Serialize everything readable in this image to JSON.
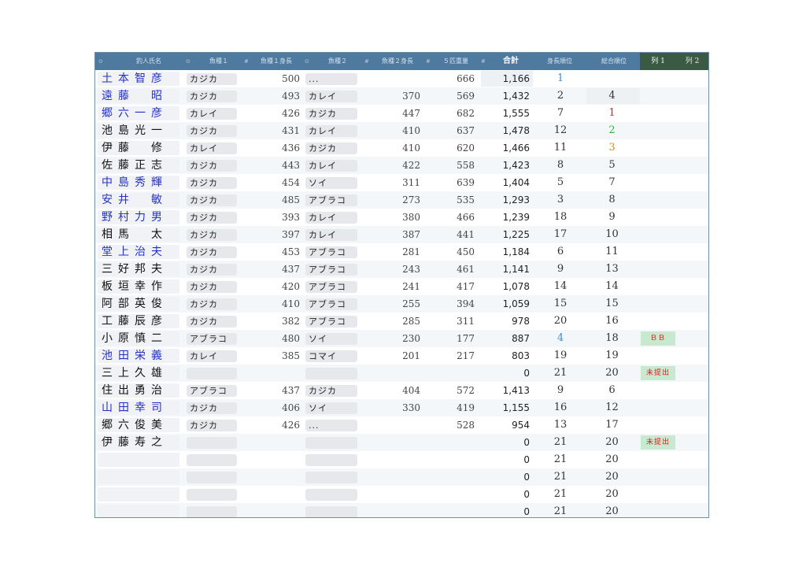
{
  "colors": {
    "header_bg": "#4e7aa0",
    "selected_header_bg": "#3a5a44",
    "name_blue": "#2432c8",
    "badge_bg": "#c9e8d0",
    "badge_text": "#cc2222",
    "rank_blue": "#3a8fd0",
    "rank_red": "#d02020",
    "rank_green": "#2fb82f",
    "rank_orange": "#e08a10"
  },
  "header": {
    "col_name": "釣人氏名",
    "col_fish1": "魚種１",
    "col_len1": "魚種１身長",
    "col_fish2": "魚種２",
    "col_len2": "魚種２身長",
    "col_top5": "５匹重量",
    "col_total": "合計",
    "col_len_rank": "身長順位",
    "col_total_rank": "総合順位",
    "col_extra1": "列 1",
    "col_extra2": "列 2"
  },
  "rows": [
    {
      "name": "土本智彦",
      "blue": true,
      "fish1": "カジカ",
      "len1": "500",
      "fish2": "...",
      "len2": "",
      "top5": "666",
      "total": "1,166",
      "len_rank": "1",
      "len_rank_color": "blue",
      "total_rank": "",
      "total_rank_color": "",
      "col1": ""
    },
    {
      "name": "遠藤　昭",
      "blue": true,
      "fish1": "カジカ",
      "len1": "493",
      "fish2": "カレイ",
      "len2": "370",
      "top5": "569",
      "total": "1,432",
      "len_rank": "2",
      "len_rank_color": "",
      "total_rank": "4",
      "total_rank_color": "",
      "col1": ""
    },
    {
      "name": "郷六一彦",
      "blue": true,
      "fish1": "カレイ",
      "len1": "426",
      "fish2": "カジカ",
      "len2": "447",
      "top5": "682",
      "total": "1,555",
      "len_rank": "7",
      "len_rank_color": "",
      "total_rank": "1",
      "total_rank_color": "red",
      "col1": ""
    },
    {
      "name": "池島光一",
      "blue": false,
      "fish1": "カジカ",
      "len1": "431",
      "fish2": "カレイ",
      "len2": "410",
      "top5": "637",
      "total": "1,478",
      "len_rank": "12",
      "len_rank_color": "",
      "total_rank": "2",
      "total_rank_color": "green",
      "col1": ""
    },
    {
      "name": "伊藤　修",
      "blue": false,
      "fish1": "カレイ",
      "len1": "436",
      "fish2": "カジカ",
      "len2": "410",
      "top5": "620",
      "total": "1,466",
      "len_rank": "11",
      "len_rank_color": "",
      "total_rank": "3",
      "total_rank_color": "orange",
      "col1": ""
    },
    {
      "name": "佐藤正志",
      "blue": false,
      "fish1": "カジカ",
      "len1": "443",
      "fish2": "カレイ",
      "len2": "422",
      "top5": "558",
      "total": "1,423",
      "len_rank": "8",
      "len_rank_color": "",
      "total_rank": "5",
      "total_rank_color": "",
      "col1": ""
    },
    {
      "name": "中島秀輝",
      "blue": true,
      "fish1": "カジカ",
      "len1": "454",
      "fish2": "ソイ",
      "len2": "311",
      "top5": "639",
      "total": "1,404",
      "len_rank": "5",
      "len_rank_color": "",
      "total_rank": "7",
      "total_rank_color": "",
      "col1": ""
    },
    {
      "name": "安井　敏",
      "blue": true,
      "fish1": "カジカ",
      "len1": "485",
      "fish2": "アブラコ",
      "len2": "273",
      "top5": "535",
      "total": "1,293",
      "len_rank": "3",
      "len_rank_color": "",
      "total_rank": "8",
      "total_rank_color": "",
      "col1": ""
    },
    {
      "name": "野村力男",
      "blue": true,
      "fish1": "カジカ",
      "len1": "393",
      "fish2": "カレイ",
      "len2": "380",
      "top5": "466",
      "total": "1,239",
      "len_rank": "18",
      "len_rank_color": "",
      "total_rank": "9",
      "total_rank_color": "",
      "col1": ""
    },
    {
      "name": "相馬　太",
      "blue": false,
      "fish1": "カジカ",
      "len1": "397",
      "fish2": "カレイ",
      "len2": "387",
      "top5": "441",
      "total": "1,225",
      "len_rank": "17",
      "len_rank_color": "",
      "total_rank": "10",
      "total_rank_color": "",
      "col1": ""
    },
    {
      "name": "堂上治夫",
      "blue": true,
      "fish1": "カジカ",
      "len1": "453",
      "fish2": "アブラコ",
      "len2": "281",
      "top5": "450",
      "total": "1,184",
      "len_rank": "6",
      "len_rank_color": "",
      "total_rank": "11",
      "total_rank_color": "",
      "col1": ""
    },
    {
      "name": "三好邦夫",
      "blue": false,
      "fish1": "カジカ",
      "len1": "437",
      "fish2": "アブラコ",
      "len2": "243",
      "top5": "461",
      "total": "1,141",
      "len_rank": "9",
      "len_rank_color": "",
      "total_rank": "13",
      "total_rank_color": "",
      "col1": ""
    },
    {
      "name": "板垣幸作",
      "blue": false,
      "fish1": "カジカ",
      "len1": "420",
      "fish2": "アブラコ",
      "len2": "241",
      "top5": "417",
      "total": "1,078",
      "len_rank": "14",
      "len_rank_color": "",
      "total_rank": "14",
      "total_rank_color": "",
      "col1": ""
    },
    {
      "name": "阿部英俊",
      "blue": false,
      "fish1": "カジカ",
      "len1": "410",
      "fish2": "アブラコ",
      "len2": "255",
      "top5": "394",
      "total": "1,059",
      "len_rank": "15",
      "len_rank_color": "",
      "total_rank": "15",
      "total_rank_color": "",
      "col1": ""
    },
    {
      "name": "工藤辰彦",
      "blue": false,
      "fish1": "カジカ",
      "len1": "382",
      "fish2": "アブラコ",
      "len2": "285",
      "top5": "311",
      "total": "978",
      "len_rank": "20",
      "len_rank_color": "",
      "total_rank": "16",
      "total_rank_color": "",
      "col1": ""
    },
    {
      "name": "小原慎二",
      "blue": false,
      "fish1": "アブラコ",
      "len1": "480",
      "fish2": "ソイ",
      "len2": "230",
      "top5": "177",
      "total": "887",
      "len_rank": "4",
      "len_rank_color": "blue",
      "total_rank": "18",
      "total_rank_color": "",
      "col1": "ＢＢ"
    },
    {
      "name": "池田栄義",
      "blue": true,
      "fish1": "カレイ",
      "len1": "385",
      "fish2": "コマイ",
      "len2": "201",
      "top5": "217",
      "total": "803",
      "len_rank": "19",
      "len_rank_color": "",
      "total_rank": "19",
      "total_rank_color": "",
      "col1": ""
    },
    {
      "name": "三上久雄",
      "blue": false,
      "fish1": "",
      "len1": "",
      "fish2": "",
      "len2": "",
      "top5": "",
      "total": "0",
      "len_rank": "21",
      "len_rank_color": "",
      "total_rank": "20",
      "total_rank_color": "",
      "col1": "未提出"
    },
    {
      "name": "住出勇治",
      "blue": false,
      "fish1": "アブラコ",
      "len1": "437",
      "fish2": "カジカ",
      "len2": "404",
      "top5": "572",
      "total": "1,413",
      "len_rank": "9",
      "len_rank_color": "",
      "total_rank": "6",
      "total_rank_color": "",
      "col1": ""
    },
    {
      "name": "山田幸司",
      "blue": true,
      "fish1": "カジカ",
      "len1": "406",
      "fish2": "ソイ",
      "len2": "330",
      "top5": "419",
      "total": "1,155",
      "len_rank": "16",
      "len_rank_color": "",
      "total_rank": "12",
      "total_rank_color": "",
      "col1": ""
    },
    {
      "name": "郷六俊美",
      "blue": false,
      "fish1": "カジカ",
      "len1": "426",
      "fish2": "...",
      "len2": "",
      "top5": "528",
      "total": "954",
      "len_rank": "13",
      "len_rank_color": "",
      "total_rank": "17",
      "total_rank_color": "",
      "col1": ""
    },
    {
      "name": "伊藤寿之",
      "blue": false,
      "fish1": "",
      "len1": "",
      "fish2": "",
      "len2": "",
      "top5": "",
      "total": "0",
      "len_rank": "21",
      "len_rank_color": "",
      "total_rank": "20",
      "total_rank_color": "",
      "col1": "未提出"
    },
    {
      "name": "",
      "blue": false,
      "fish1": "",
      "len1": "",
      "fish2": "",
      "len2": "",
      "top5": "",
      "total": "0",
      "len_rank": "21",
      "len_rank_color": "",
      "total_rank": "20",
      "total_rank_color": "",
      "col1": ""
    },
    {
      "name": "",
      "blue": false,
      "fish1": "",
      "len1": "",
      "fish2": "",
      "len2": "",
      "top5": "",
      "total": "0",
      "len_rank": "21",
      "len_rank_color": "",
      "total_rank": "20",
      "total_rank_color": "",
      "col1": ""
    },
    {
      "name": "",
      "blue": false,
      "fish1": "",
      "len1": "",
      "fish2": "",
      "len2": "",
      "top5": "",
      "total": "0",
      "len_rank": "21",
      "len_rank_color": "",
      "total_rank": "20",
      "total_rank_color": "",
      "col1": ""
    },
    {
      "name": "",
      "blue": false,
      "fish1": "",
      "len1": "",
      "fish2": "",
      "len2": "",
      "top5": "",
      "total": "0",
      "len_rank": "21",
      "len_rank_color": "",
      "total_rank": "20",
      "total_rank_color": "",
      "col1": ""
    }
  ]
}
